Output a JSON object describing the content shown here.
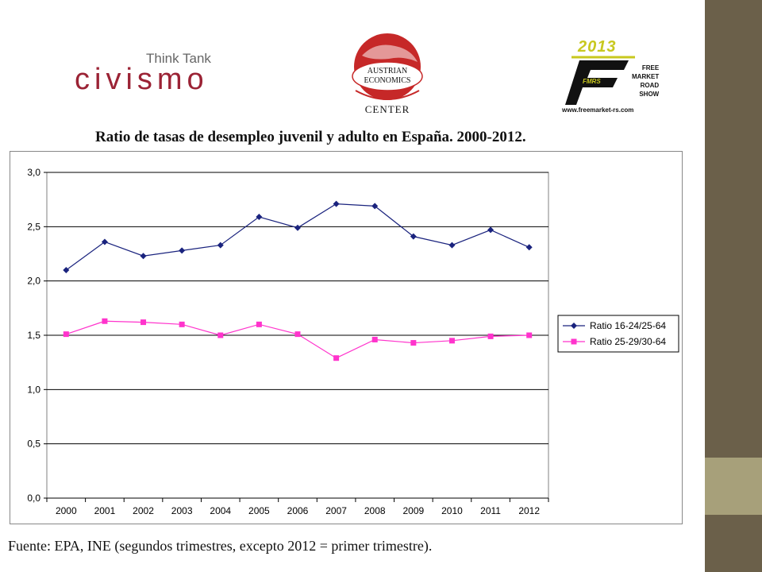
{
  "logos": {
    "civismo": {
      "tagline": "Think Tank",
      "name": "civismo"
    },
    "austrian": {
      "lines": "AUSTRIAN\nECONOMICS",
      "center": "CENTER"
    },
    "fmrs": {
      "year": "2013",
      "words": "FREE\nMARKET\nROAD\nSHOW",
      "badge": "FMRS",
      "url": "www.freemarket-rs.com"
    }
  },
  "source_note": "Fuente: EPA, INE (segundos trimestres, excepto 2012 = primer trimestre).",
  "colors": {
    "series1": "#1a237e",
    "series2": "#ff33cc",
    "band_dark": "#6b604a",
    "band_light": "#a7a07a"
  },
  "chart_data": {
    "type": "line",
    "title": "Ratio de tasas de desempleo juvenil y adulto en España. 2000-2012.",
    "xlabel": "",
    "ylabel": "",
    "categories": [
      "2000",
      "2001",
      "2002",
      "2003",
      "2004",
      "2005",
      "2006",
      "2007",
      "2008",
      "2009",
      "2010",
      "2011",
      "2012"
    ],
    "ylim": [
      0,
      3
    ],
    "yticks": [
      "0,0",
      "0,5",
      "1,0",
      "1,5",
      "2,0",
      "2,5",
      "3,0"
    ],
    "grid": "horizontal",
    "legend_position": "right",
    "series": [
      {
        "name": "Ratio 16-24/25-64",
        "marker": "diamond",
        "values": [
          2.1,
          2.36,
          2.23,
          2.28,
          2.33,
          2.59,
          2.49,
          2.71,
          2.69,
          2.41,
          2.33,
          2.47,
          2.31
        ]
      },
      {
        "name": "Ratio 25-29/30-64",
        "marker": "square",
        "values": [
          1.51,
          1.63,
          1.62,
          1.6,
          1.5,
          1.6,
          1.51,
          1.29,
          1.46,
          1.43,
          1.45,
          1.49,
          1.5
        ]
      }
    ]
  }
}
